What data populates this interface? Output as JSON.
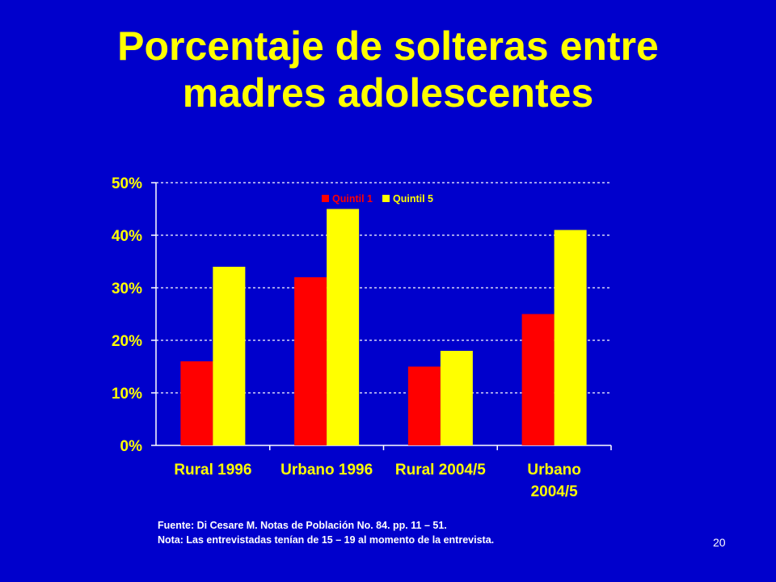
{
  "slide": {
    "title_line1": "Porcentaje de solteras entre",
    "title_line2": "madres adolescentes",
    "source": "Fuente: Di Cesare M. Notas de Población No. 84. pp. 11 – 51.",
    "note": "Nota: Las entrevistadas tenían de 15 – 19 al momento de la entrevista.",
    "page_number": "20"
  },
  "colors": {
    "background": "#0000CC",
    "title": "#FFFF00",
    "axis_text": "#FFFF00",
    "axis_line": "#FFFFFF",
    "grid": "#FFFFFF",
    "series_1": "#FF0000",
    "series_2": "#FFFF00"
  },
  "chart_data": {
    "type": "bar",
    "categories": [
      [
        "Rural 1996"
      ],
      [
        "Urbano 1996"
      ],
      [
        "Rural 2004/5"
      ],
      [
        "Urbano",
        "2004/5"
      ]
    ],
    "series": [
      {
        "name": "Quintil 1",
        "values": [
          16,
          32,
          15,
          25
        ],
        "color": "#FF0000"
      },
      {
        "name": "Quintil 5",
        "values": [
          34,
          45,
          18,
          41
        ],
        "color": "#FFFF00"
      }
    ],
    "yticks": [
      0,
      10,
      20,
      30,
      40,
      50
    ],
    "ytick_labels": [
      "0%",
      "10%",
      "20%",
      "30%",
      "40%",
      "50%"
    ],
    "ylim": [
      0,
      50
    ],
    "grid": true,
    "legend_position": "top-center"
  }
}
